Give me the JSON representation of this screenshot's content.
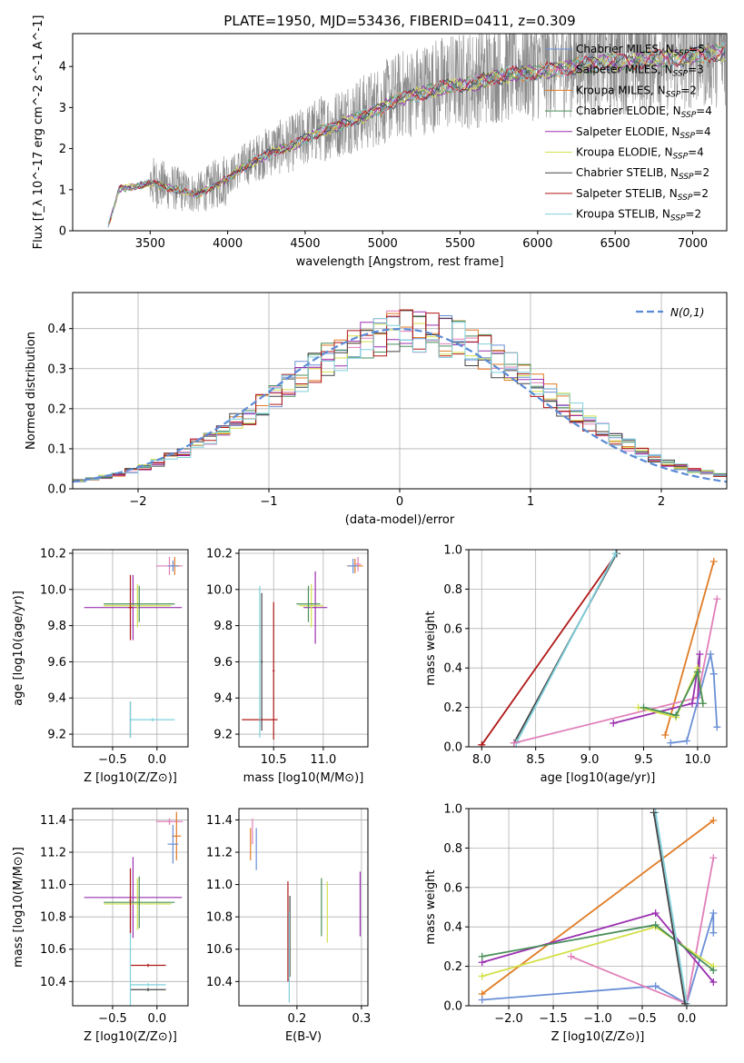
{
  "chart_data": [
    {
      "id": "spectrum",
      "type": "line",
      "title": "PLATE=1950, MJD=53436, FIBERID=0411, z=0.309",
      "xlabel": "wavelength [Angstrom, rest frame]",
      "ylabel": "Flux [f_λ 10^-17 erg cm^-2 s^-1 A^-1]",
      "xlim": [
        3000,
        7220
      ],
      "ylim": [
        0,
        4.8
      ],
      "xticks": [
        3500,
        4000,
        4500,
        5000,
        5500,
        6000,
        6500,
        7000
      ],
      "yticks": [
        0,
        1,
        2,
        3,
        4
      ],
      "grid": false,
      "legend_position": "top-right",
      "data_wavelength_range": [
        3220,
        7220
      ],
      "data_x": [
        3220,
        3300,
        3400,
        3500,
        3600,
        3700,
        3800,
        3900,
        4000,
        4100,
        4200,
        4300,
        4400,
        4500,
        4600,
        4700,
        4800,
        4900,
        5000,
        5100,
        5200,
        5300,
        5400,
        5500,
        5600,
        5700,
        5800,
        5900,
        6000,
        6100,
        6200,
        6300,
        6400,
        6500,
        6600,
        6700,
        6800,
        6900,
        7000,
        7100,
        7220
      ],
      "data_y": [
        0.0,
        1.05,
        1.1,
        1.2,
        1.1,
        1.0,
        0.9,
        1.1,
        1.3,
        1.6,
        1.8,
        2.0,
        2.1,
        2.3,
        2.5,
        2.6,
        2.8,
        2.9,
        3.1,
        3.3,
        3.4,
        3.5,
        3.6,
        3.65,
        3.7,
        3.85,
        3.9,
        3.95,
        4.0,
        4.05,
        4.1,
        4.15,
        4.2,
        4.25,
        4.2,
        4.3,
        4.35,
        4.3,
        4.4,
        4.45,
        4.5
      ],
      "series": [
        {
          "name": "Chabrier MILES, N_SSP=5",
          "name_main": "Chabrier MILES, N",
          "name_sub": "SSP",
          "name_tail": "=5",
          "color": "#6a8fd6"
        },
        {
          "name": "Salpeter MILES, N_SSP=3",
          "name_main": "Salpeter MILES, N",
          "name_sub": "SSP",
          "name_tail": "=3",
          "color": "#e07fb8"
        },
        {
          "name": "Kroupa MILES, N_SSP=2",
          "name_main": "Kroupa MILES, N",
          "name_sub": "SSP",
          "name_tail": "=2",
          "color": "#e07b24"
        },
        {
          "name": "Chabrier ELODIE, N_SSP=4",
          "name_main": "Chabrier ELODIE, N",
          "name_sub": "SSP",
          "name_tail": "=4",
          "color": "#4a8f5a"
        },
        {
          "name": "Salpeter ELODIE, N_SSP=4",
          "name_main": "Salpeter ELODIE, N",
          "name_sub": "SSP",
          "name_tail": "=4",
          "color": "#9a2fb0"
        },
        {
          "name": "Kroupa ELODIE, N_SSP=4",
          "name_main": "Kroupa ELODIE, N",
          "name_sub": "SSP",
          "name_tail": "=4",
          "color": "#d4e04a"
        },
        {
          "name": "Chabrier STELIB, N_SSP=2",
          "name_main": "Chabrier STELIB, N",
          "name_sub": "SSP",
          "name_tail": "=2",
          "color": "#444444"
        },
        {
          "name": "Salpeter STELIB, N_SSP=2",
          "name_main": "Salpeter STELIB, N",
          "name_sub": "SSP",
          "name_tail": "=2",
          "color": "#b01818"
        },
        {
          "name": "Kroupa STELIB, N_SSP=2",
          "name_main": "Kroupa STELIB, N",
          "name_sub": "SSP",
          "name_tail": "=2",
          "color": "#7fd0dc"
        }
      ]
    },
    {
      "id": "residuals",
      "type": "histogram",
      "xlabel": "(data-model)/error",
      "ylabel": "Normed distribution",
      "xlim": [
        -2.5,
        2.5
      ],
      "ylim": [
        0,
        0.49
      ],
      "xticks": [
        -2,
        -1,
        0,
        1,
        2
      ],
      "yticks": [
        0.0,
        0.1,
        0.2,
        0.3,
        0.4
      ],
      "grid": true,
      "legend_position": "top-right",
      "legend_label": "N(0,1)",
      "normal_color": "#5b8bd6",
      "bin_edges": [
        -2.5,
        -2.4,
        -2.3,
        -2.2,
        -2.1,
        -2.0,
        -1.9,
        -1.8,
        -1.7,
        -1.6,
        -1.5,
        -1.4,
        -1.3,
        -1.2,
        -1.1,
        -1.0,
        -0.9,
        -0.8,
        -0.7,
        -0.6,
        -0.5,
        -0.4,
        -0.3,
        -0.2,
        -0.1,
        0.0,
        0.1,
        0.2,
        0.3,
        0.4,
        0.5,
        0.6,
        0.7,
        0.8,
        0.9,
        1.0,
        1.1,
        1.2,
        1.3,
        1.4,
        1.5,
        1.6,
        1.7,
        1.8,
        1.9,
        2.0,
        2.1,
        2.2,
        2.3,
        2.4,
        2.5
      ],
      "series_base": [
        0.02,
        0.025,
        0.03,
        0.035,
        0.045,
        0.055,
        0.065,
        0.08,
        0.09,
        0.11,
        0.125,
        0.145,
        0.165,
        0.185,
        0.21,
        0.23,
        0.255,
        0.28,
        0.3,
        0.32,
        0.34,
        0.355,
        0.37,
        0.385,
        0.395,
        0.4,
        0.395,
        0.39,
        0.38,
        0.37,
        0.355,
        0.34,
        0.32,
        0.3,
        0.28,
        0.255,
        0.235,
        0.21,
        0.19,
        0.165,
        0.145,
        0.125,
        0.11,
        0.09,
        0.075,
        0.065,
        0.055,
        0.045,
        0.04,
        0.035
      ]
    },
    {
      "id": "age-vs-Z",
      "type": "errorbar",
      "xlabel": "Z [log10(Z/Z⊙)]",
      "ylabel": "age [log10(age/yr)]",
      "xlim": [
        -0.95,
        0.35
      ],
      "ylim": [
        9.13,
        10.22
      ],
      "xticks": [
        -0.5,
        0.0
      ],
      "yticks": [
        9.2,
        9.4,
        9.6,
        9.8,
        10.0,
        10.2
      ],
      "grid": true,
      "points": [
        {
          "x": -0.27,
          "y": 9.9,
          "xerr": 0.55,
          "yerr": 0.18,
          "color": "#9a2fb0"
        },
        {
          "x": -0.22,
          "y": 9.91,
          "xerr": 0.38,
          "yerr": 0.12,
          "color": "#d4e04a"
        },
        {
          "x": -0.2,
          "y": 9.92,
          "xerr": 0.4,
          "yerr": 0.1,
          "color": "#4a8f5a"
        },
        {
          "x": -0.3,
          "y": 9.9,
          "xerr": 0.02,
          "yerr": 0.18,
          "color": "#b01818"
        },
        {
          "x": 0.14,
          "y": 10.13,
          "xerr": 0.15,
          "yerr": 0.05,
          "color": "#e07fb8"
        },
        {
          "x": 0.2,
          "y": 10.13,
          "xerr": 0.05,
          "yerr": 0.05,
          "color": "#e07b24"
        },
        {
          "x": -0.3,
          "y": 9.28,
          "xerr": 0.01,
          "yerr": 0.1,
          "color": "#444444"
        },
        {
          "x": -0.3,
          "y": 9.28,
          "xerr": 0.01,
          "yerr": 0.1,
          "color": "#7fd0dc"
        },
        {
          "x": -0.05,
          "y": 9.28,
          "xerr": 0.25,
          "yerr": 0.01,
          "color": "#7fd0dc"
        },
        {
          "x": 0.18,
          "y": 10.13,
          "xerr": 0.06,
          "yerr": 0.03,
          "color": "#6a8fd6"
        }
      ]
    },
    {
      "id": "age-vs-mass",
      "type": "errorbar",
      "xlabel": "mass [log10(M/M⊙)]",
      "ylabel": "",
      "xlim": [
        10.15,
        11.45
      ],
      "ylim": [
        9.13,
        10.22
      ],
      "xticks": [
        10.5,
        11.0
      ],
      "yticks": [
        9.2,
        9.4,
        9.6,
        9.8,
        10.0,
        10.2
      ],
      "grid": true,
      "points": [
        {
          "x": 10.92,
          "y": 9.9,
          "xerr": 0.12,
          "yerr": 0.2,
          "color": "#9a2fb0"
        },
        {
          "x": 10.88,
          "y": 9.91,
          "xerr": 0.12,
          "yerr": 0.12,
          "color": "#d4e04a"
        },
        {
          "x": 10.85,
          "y": 9.92,
          "xerr": 0.12,
          "yerr": 0.1,
          "color": "#4a8f5a"
        },
        {
          "x": 10.5,
          "y": 9.55,
          "xerr": 0.01,
          "yerr": 0.38,
          "color": "#b01818"
        },
        {
          "x": 10.38,
          "y": 9.6,
          "xerr": 0.01,
          "yerr": 0.38,
          "color": "#444444"
        },
        {
          "x": 10.36,
          "y": 9.28,
          "xerr": 0.18,
          "yerr": 0.01,
          "color": "#b01818"
        },
        {
          "x": 10.36,
          "y": 9.6,
          "xerr": 0.01,
          "yerr": 0.42,
          "color": "#7fd0dc"
        },
        {
          "x": 11.35,
          "y": 10.14,
          "xerr": 0.03,
          "yerr": 0.04,
          "color": "#e07fb8"
        },
        {
          "x": 11.32,
          "y": 10.13,
          "xerr": 0.08,
          "yerr": 0.04,
          "color": "#e07b24"
        },
        {
          "x": 11.3,
          "y": 10.13,
          "xerr": 0.05,
          "yerr": 0.04,
          "color": "#6a8fd6"
        }
      ]
    },
    {
      "id": "massweight-vs-age",
      "type": "line",
      "xlabel": "age [log10(age/yr)]",
      "ylabel": "mass weight",
      "xlim": [
        7.88,
        10.27
      ],
      "ylim": [
        0,
        1.0
      ],
      "xticks": [
        8.0,
        8.5,
        9.0,
        9.5,
        10.0
      ],
      "yticks": [
        0.0,
        0.2,
        0.4,
        0.6,
        0.8,
        1.0
      ],
      "grid": true,
      "series": [
        {
          "color": "#b01818",
          "x": [
            8.0,
            9.25
          ],
          "y": [
            0.01,
            0.98
          ]
        },
        {
          "color": "#444444",
          "x": [
            8.3,
            9.25
          ],
          "y": [
            0.02,
            0.98
          ]
        },
        {
          "color": "#7fd0dc",
          "x": [
            8.32,
            9.24
          ],
          "y": [
            0.02,
            0.98
          ]
        },
        {
          "color": "#e07b24",
          "x": [
            9.7,
            10.15
          ],
          "y": [
            0.06,
            0.94
          ]
        },
        {
          "color": "#e07fb8",
          "x": [
            8.3,
            10.0,
            10.18
          ],
          "y": [
            0.02,
            0.25,
            0.75
          ]
        },
        {
          "color": "#9a2fb0",
          "x": [
            9.22,
            9.95,
            10.02,
            10.0
          ],
          "y": [
            0.12,
            0.22,
            0.47,
            0.22
          ]
        },
        {
          "color": "#6a8fd6",
          "x": [
            9.75,
            9.9,
            10.12,
            10.15,
            10.18
          ],
          "y": [
            0.02,
            0.03,
            0.47,
            0.37,
            0.1
          ]
        },
        {
          "color": "#d4e04a",
          "x": [
            9.45,
            9.8,
            10.0,
            10.05
          ],
          "y": [
            0.2,
            0.15,
            0.4,
            0.22
          ]
        },
        {
          "color": "#4a8f5a",
          "x": [
            9.5,
            9.8,
            10.0,
            10.05
          ],
          "y": [
            0.2,
            0.16,
            0.38,
            0.22
          ]
        }
      ]
    },
    {
      "id": "mass-vs-Z",
      "type": "errorbar",
      "xlabel": "Z [log10(Z/Z⊙)]",
      "ylabel": "mass [log10(M/M⊙)]",
      "xlim": [
        -0.95,
        0.35
      ],
      "ylim": [
        10.25,
        11.47
      ],
      "xticks": [
        -0.5,
        0.0
      ],
      "yticks": [
        10.4,
        10.6,
        10.8,
        11.0,
        11.2,
        11.4
      ],
      "grid": true,
      "points": [
        {
          "x": -0.27,
          "y": 10.92,
          "xerr": 0.55,
          "yerr": 0.25,
          "color": "#9a2fb0"
        },
        {
          "x": -0.22,
          "y": 10.88,
          "xerr": 0.38,
          "yerr": 0.16,
          "color": "#d4e04a"
        },
        {
          "x": -0.2,
          "y": 10.89,
          "xerr": 0.4,
          "yerr": 0.16,
          "color": "#4a8f5a"
        },
        {
          "x": -0.1,
          "y": 10.5,
          "xerr": 0.2,
          "yerr": 0.01,
          "color": "#b01818"
        },
        {
          "x": -0.1,
          "y": 10.35,
          "xerr": 0.2,
          "yerr": 0.01,
          "color": "#444444"
        },
        {
          "x": -0.1,
          "y": 10.38,
          "xerr": 0.2,
          "yerr": 0.01,
          "color": "#7fd0dc"
        },
        {
          "x": -0.3,
          "y": 10.6,
          "xerr": 0.01,
          "yerr": 0.35,
          "color": "#7fd0dc"
        },
        {
          "x": -0.3,
          "y": 10.9,
          "xerr": 0.01,
          "yerr": 0.2,
          "color": "#b01818"
        },
        {
          "x": 0.14,
          "y": 11.39,
          "xerr": 0.15,
          "yerr": 0.02,
          "color": "#e07fb8"
        },
        {
          "x": 0.22,
          "y": 11.3,
          "xerr": 0.05,
          "yerr": 0.15,
          "color": "#e07b24"
        },
        {
          "x": 0.18,
          "y": 11.25,
          "xerr": 0.06,
          "yerr": 0.12,
          "color": "#6a8fd6"
        }
      ]
    },
    {
      "id": "mass-vs-EBV",
      "type": "errorbar",
      "xlabel": "E(B-V)",
      "ylabel": "",
      "xlim": [
        0.11,
        0.31
      ],
      "ylim": [
        10.25,
        11.47
      ],
      "xticks": [
        0.2,
        0.3
      ],
      "yticks": [
        10.4,
        10.6,
        10.8,
        11.0,
        11.2,
        11.4
      ],
      "grid": true,
      "points": [
        {
          "x": 0.186,
          "y": 10.71,
          "xerr": 0.0,
          "yerr": 0.31,
          "color": "#b01818"
        },
        {
          "x": 0.189,
          "y": 10.68,
          "xerr": 0.0,
          "yerr": 0.25,
          "color": "#444444"
        },
        {
          "x": 0.188,
          "y": 10.55,
          "xerr": 0.0,
          "yerr": 0.28,
          "color": "#7fd0dc"
        },
        {
          "x": 0.238,
          "y": 10.86,
          "xerr": 0.0,
          "yerr": 0.18,
          "color": "#4a8f5a"
        },
        {
          "x": 0.247,
          "y": 10.83,
          "xerr": 0.0,
          "yerr": 0.19,
          "color": "#d4e04a"
        },
        {
          "x": 0.298,
          "y": 10.88,
          "xerr": 0.0,
          "yerr": 0.2,
          "color": "#9a2fb0"
        },
        {
          "x": 0.128,
          "y": 11.25,
          "xerr": 0.0,
          "yerr": 0.1,
          "color": "#e07b24"
        },
        {
          "x": 0.131,
          "y": 11.33,
          "xerr": 0.0,
          "yerr": 0.08,
          "color": "#e07fb8"
        },
        {
          "x": 0.137,
          "y": 11.22,
          "xerr": 0.0,
          "yerr": 0.13,
          "color": "#6a8fd6"
        }
      ]
    },
    {
      "id": "massweight-vs-Z",
      "type": "line",
      "xlabel": "Z [log10(Z/Z⊙)]",
      "ylabel": "mass weight",
      "xlim": [
        -2.45,
        0.45
      ],
      "ylim": [
        0,
        1.0
      ],
      "xticks": [
        -2.0,
        -1.5,
        -1.0,
        -0.5,
        0.0
      ],
      "yticks": [
        0.0,
        0.2,
        0.4,
        0.6,
        0.8,
        1.0
      ],
      "grid": true,
      "series": [
        {
          "color": "#e07b24",
          "x": [
            -2.3,
            0.3
          ],
          "y": [
            0.06,
            0.94
          ]
        },
        {
          "color": "#6a8fd6",
          "x": [
            -2.3,
            -0.35,
            0.0,
            0.3,
            0.3
          ],
          "y": [
            0.03,
            0.1,
            0.01,
            0.47,
            0.37
          ]
        },
        {
          "color": "#e07fb8",
          "x": [
            -1.3,
            0.0,
            0.3
          ],
          "y": [
            0.25,
            0.01,
            0.75
          ]
        },
        {
          "color": "#9a2fb0",
          "x": [
            -2.3,
            -0.35,
            0.3
          ],
          "y": [
            0.22,
            0.47,
            0.12
          ]
        },
        {
          "color": "#d4e04a",
          "x": [
            -2.3,
            -0.35,
            0.3
          ],
          "y": [
            0.15,
            0.4,
            0.2
          ]
        },
        {
          "color": "#4a8f5a",
          "x": [
            -2.3,
            -0.35,
            0.3
          ],
          "y": [
            0.25,
            0.41,
            0.18
          ]
        },
        {
          "color": "#7fd0dc",
          "x": [
            -0.35,
            0.0
          ],
          "y": [
            0.98,
            0.01
          ]
        },
        {
          "color": "#444444",
          "x": [
            -0.37,
            -0.02
          ],
          "y": [
            0.98,
            0.01
          ]
        }
      ]
    }
  ]
}
